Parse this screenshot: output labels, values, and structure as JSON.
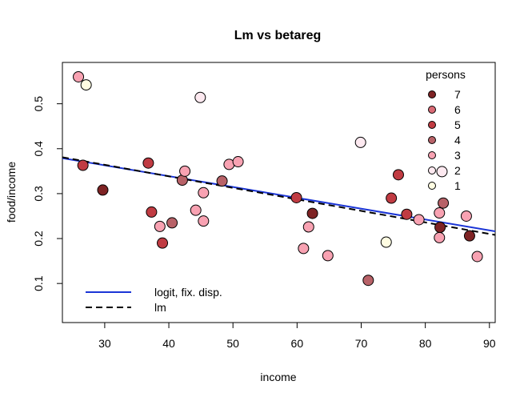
{
  "chart_data": {
    "type": "scatter",
    "title": "Lm vs betareg",
    "xlabel": "income",
    "ylabel": "food/income",
    "xlim": [
      23.4,
      90.9
    ],
    "ylim": [
      0.013,
      0.592
    ],
    "xticks": [
      30,
      40,
      50,
      60,
      70,
      80,
      90
    ],
    "yticks": [
      0.1,
      0.2,
      0.3,
      0.4,
      0.5
    ],
    "ytick_labels": [
      "0.1",
      "0.2",
      "0.3",
      "0.4",
      "0.5"
    ],
    "grid": false,
    "persons_colors": {
      "1": "#fffde2",
      "2": "#fde9f0",
      "3": "#f8a2b2",
      "4": "#b86268",
      "5": "#c03b42",
      "6": "#d96a75",
      "7": "#7e2324"
    },
    "legend_persons": {
      "title": "persons",
      "position": "top-right",
      "items": [
        "7",
        "6",
        "5",
        "4",
        "3",
        "2",
        "1"
      ]
    },
    "legend_lines": {
      "position": "bottom-left",
      "items": [
        {
          "label": "logit, fix. disp.",
          "color": "#1b35d6",
          "dash": "solid"
        },
        {
          "label": "lm",
          "color": "#000000",
          "dash": "dashed"
        }
      ]
    },
    "points": [
      {
        "x": 25.9,
        "y": 0.56,
        "persons": 3
      },
      {
        "x": 27.1,
        "y": 0.542,
        "persons": 1
      },
      {
        "x": 26.6,
        "y": 0.363,
        "persons": 5
      },
      {
        "x": 29.7,
        "y": 0.308,
        "persons": 7
      },
      {
        "x": 36.8,
        "y": 0.368,
        "persons": 5
      },
      {
        "x": 37.3,
        "y": 0.259,
        "persons": 5
      },
      {
        "x": 38.6,
        "y": 0.227,
        "persons": 3
      },
      {
        "x": 39.0,
        "y": 0.19,
        "persons": 5
      },
      {
        "x": 40.5,
        "y": 0.235,
        "persons": 4
      },
      {
        "x": 42.1,
        "y": 0.33,
        "persons": 4
      },
      {
        "x": 42.5,
        "y": 0.35,
        "persons": 3
      },
      {
        "x": 44.2,
        "y": 0.263,
        "persons": 3
      },
      {
        "x": 44.9,
        "y": 0.514,
        "persons": 2
      },
      {
        "x": 45.4,
        "y": 0.302,
        "persons": 3
      },
      {
        "x": 45.4,
        "y": 0.239,
        "persons": 3
      },
      {
        "x": 48.3,
        "y": 0.328,
        "persons": 4
      },
      {
        "x": 49.4,
        "y": 0.365,
        "persons": 3
      },
      {
        "x": 50.8,
        "y": 0.371,
        "persons": 3
      },
      {
        "x": 59.9,
        "y": 0.291,
        "persons": 5
      },
      {
        "x": 61.0,
        "y": 0.178,
        "persons": 3
      },
      {
        "x": 61.8,
        "y": 0.226,
        "persons": 3
      },
      {
        "x": 62.4,
        "y": 0.256,
        "persons": 7
      },
      {
        "x": 64.8,
        "y": 0.162,
        "persons": 3
      },
      {
        "x": 69.9,
        "y": 0.414,
        "persons": 2
      },
      {
        "x": 71.1,
        "y": 0.107,
        "persons": 4
      },
      {
        "x": 73.9,
        "y": 0.192,
        "persons": 1
      },
      {
        "x": 74.7,
        "y": 0.29,
        "persons": 5
      },
      {
        "x": 75.8,
        "y": 0.342,
        "persons": 5
      },
      {
        "x": 77.1,
        "y": 0.254,
        "persons": 5
      },
      {
        "x": 79.0,
        "y": 0.242,
        "persons": 3
      },
      {
        "x": 82.2,
        "y": 0.257,
        "persons": 3
      },
      {
        "x": 82.2,
        "y": 0.202,
        "persons": 3
      },
      {
        "x": 82.3,
        "y": 0.225,
        "persons": 7
      },
      {
        "x": 82.6,
        "y": 0.349,
        "persons": 2
      },
      {
        "x": 82.8,
        "y": 0.279,
        "persons": 4
      },
      {
        "x": 86.4,
        "y": 0.25,
        "persons": 3
      },
      {
        "x": 86.9,
        "y": 0.206,
        "persons": 7
      },
      {
        "x": 88.1,
        "y": 0.16,
        "persons": 3
      }
    ],
    "series": [
      {
        "name": "logit, fix. disp.",
        "type": "line",
        "x": [
          23.4,
          90.9
        ],
        "y": [
          0.379,
          0.216
        ]
      },
      {
        "name": "lm",
        "type": "line",
        "x": [
          23.4,
          90.9
        ],
        "y": [
          0.381,
          0.208
        ]
      }
    ]
  }
}
